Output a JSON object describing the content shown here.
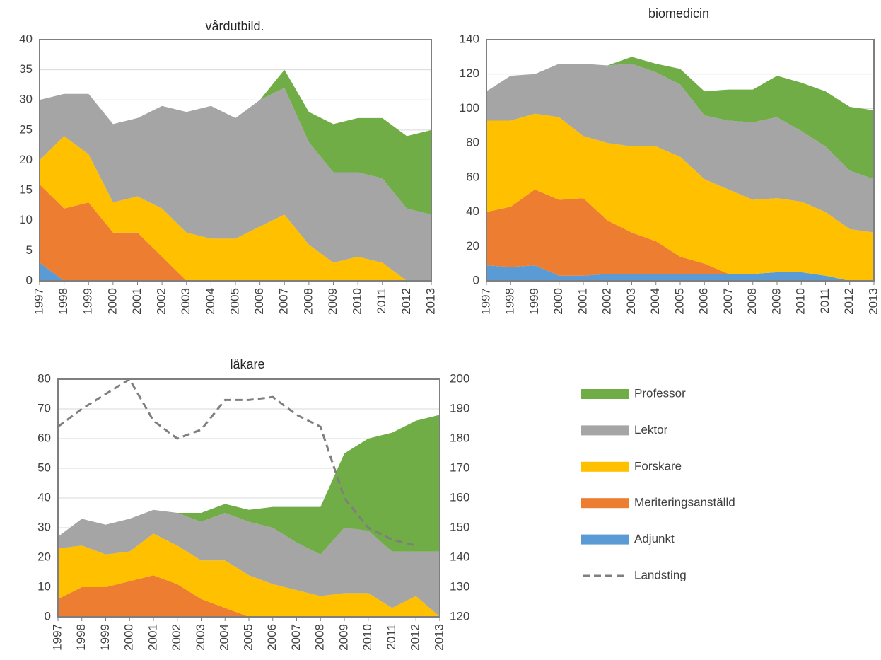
{
  "chart_data": [
    {
      "type": "area",
      "title": "vårdutbild.",
      "categories": [
        "1997",
        "1998",
        "1999",
        "2000",
        "2001",
        "2002",
        "2003",
        "2004",
        "2005",
        "2006",
        "2007",
        "2008",
        "2009",
        "2010",
        "2011",
        "2012",
        "2013"
      ],
      "ylim": [
        0,
        40
      ],
      "yticks": [
        0,
        5,
        10,
        15,
        20,
        25,
        30,
        35,
        40
      ],
      "grid": true,
      "series": [
        {
          "color": "#5b9bd5",
          "values": [
            3,
            0,
            0,
            0,
            0,
            0,
            0,
            0,
            0,
            0,
            0,
            0,
            0,
            0,
            0,
            0,
            0
          ]
        },
        {
          "color": "#ed7d31",
          "values": [
            13,
            12,
            13,
            8,
            8,
            4,
            0,
            0,
            0,
            0,
            0,
            0,
            0,
            0,
            0,
            0,
            0
          ]
        },
        {
          "color": "#ffc000",
          "values": [
            4,
            12,
            8,
            5,
            6,
            8,
            8,
            7,
            7,
            9,
            11,
            6,
            3,
            4,
            3,
            0,
            0
          ]
        },
        {
          "color": "#a5a5a5",
          "values": [
            10,
            7,
            10,
            13,
            13,
            17,
            20,
            22,
            20,
            21,
            21,
            17,
            15,
            14,
            14,
            12,
            11
          ]
        },
        {
          "color": "#70ad47",
          "values": [
            0,
            0,
            0,
            0,
            0,
            0,
            0,
            0,
            0,
            0,
            3,
            5,
            8,
            9,
            10,
            12,
            14
          ]
        }
      ]
    },
    {
      "type": "area",
      "title": "biomedicin",
      "categories": [
        "1997",
        "1998",
        "1999",
        "2000",
        "2001",
        "2002",
        "2003",
        "2004",
        "2005",
        "2006",
        "2007",
        "2008",
        "2009",
        "2010",
        "2011",
        "2012",
        "2013"
      ],
      "ylim": [
        0,
        140
      ],
      "yticks": [
        0,
        20,
        40,
        60,
        80,
        100,
        120,
        140
      ],
      "grid": true,
      "series": [
        {
          "color": "#5b9bd5",
          "values": [
            9,
            8,
            9,
            3,
            3,
            4,
            4,
            4,
            4,
            4,
            4,
            4,
            5,
            5,
            3,
            0,
            0
          ]
        },
        {
          "color": "#ed7d31",
          "values": [
            31,
            35,
            44,
            44,
            45,
            31,
            24,
            19,
            10,
            6,
            0,
            0,
            0,
            0,
            0,
            0,
            0
          ]
        },
        {
          "color": "#ffc000",
          "values": [
            53,
            50,
            44,
            48,
            36,
            45,
            50,
            55,
            58,
            49,
            49,
            43,
            43,
            41,
            37,
            30,
            28
          ]
        },
        {
          "color": "#a5a5a5",
          "values": [
            17,
            26,
            23,
            31,
            42,
            45,
            48,
            43,
            42,
            37,
            40,
            45,
            47,
            41,
            38,
            34,
            31
          ]
        },
        {
          "color": "#70ad47",
          "values": [
            0,
            0,
            0,
            0,
            0,
            0,
            4,
            5,
            9,
            14,
            18,
            19,
            24,
            28,
            32,
            37,
            40
          ]
        }
      ]
    },
    {
      "type": "area",
      "title": "läkare",
      "categories": [
        "1997",
        "1998",
        "1999",
        "2000",
        "2001",
        "2002",
        "2003",
        "2004",
        "2005",
        "2006",
        "2007",
        "2008",
        "2009",
        "2010",
        "2011",
        "2012",
        "2013"
      ],
      "ylim": [
        0,
        80
      ],
      "yticks": [
        0,
        10,
        20,
        30,
        40,
        50,
        60,
        70,
        80
      ],
      "y2lim": [
        120,
        200
      ],
      "y2ticks": [
        120,
        130,
        140,
        150,
        160,
        170,
        180,
        190,
        200
      ],
      "grid": true,
      "series": [
        {
          "name": "Adjunkt",
          "color": "#5b9bd5",
          "values": [
            0,
            0,
            0,
            0,
            0,
            0,
            0,
            0,
            0,
            0,
            0,
            0,
            0,
            0,
            0,
            0,
            0
          ]
        },
        {
          "name": "Meriteringsanställd",
          "color": "#ed7d31",
          "values": [
            6,
            10,
            10,
            12,
            14,
            11,
            6,
            3,
            0,
            0,
            0,
            0,
            0,
            0,
            0,
            0,
            0
          ]
        },
        {
          "name": "Forskare",
          "color": "#ffc000",
          "values": [
            17,
            14,
            11,
            10,
            14,
            13,
            13,
            16,
            14,
            11,
            9,
            7,
            8,
            8,
            3,
            7,
            0
          ]
        },
        {
          "name": "Lektor",
          "color": "#a5a5a5",
          "values": [
            4,
            9,
            10,
            11,
            8,
            11,
            13,
            16,
            18,
            19,
            16,
            14,
            22,
            21,
            19,
            15,
            22
          ]
        },
        {
          "name": "Professor",
          "color": "#70ad47",
          "values": [
            0,
            0,
            0,
            0,
            0,
            0,
            3,
            3,
            4,
            7,
            12,
            16,
            25,
            31,
            40,
            44,
            46
          ]
        },
        {
          "name": "Landsting",
          "color": "#7f7f7f",
          "type": "line",
          "dashed": true,
          "axis": "y2",
          "values": [
            184,
            190,
            195,
            200,
            186,
            180,
            183,
            193,
            193,
            194,
            188,
            184,
            160,
            150,
            146,
            144,
            null
          ]
        }
      ]
    }
  ]
}
